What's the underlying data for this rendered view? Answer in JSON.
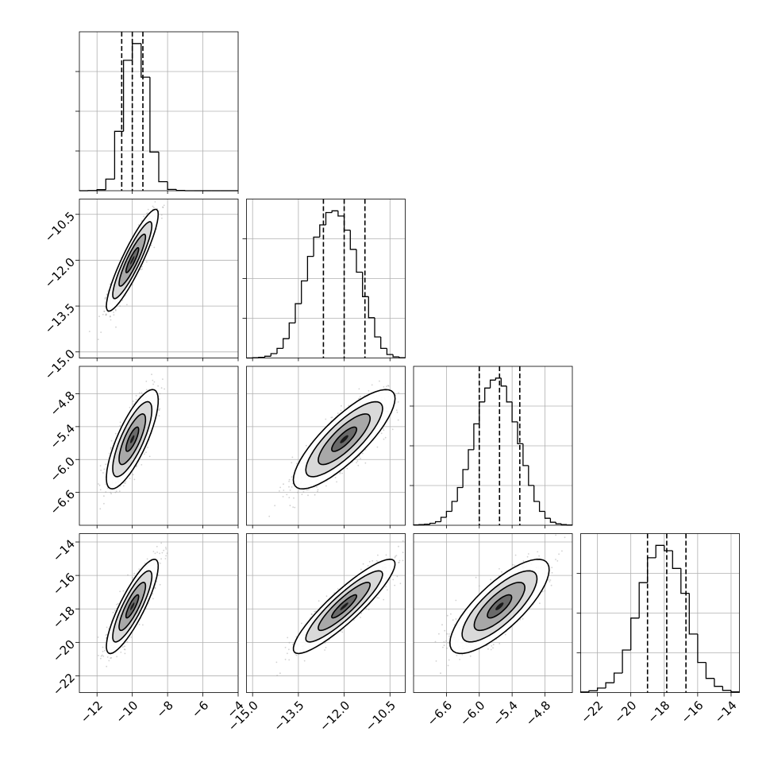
{
  "chart_data": {
    "type": "corner",
    "grid": true,
    "quantile_lines": [
      0.16,
      0.5,
      0.84
    ],
    "colors": {
      "axes": "#000000",
      "grid": "#b0b0b0",
      "points": "#9a9a9a",
      "contour": "#000000",
      "hist": "#000000"
    },
    "parameters": [
      {
        "id": "p0",
        "range": [
          -13,
          -4
        ],
        "mean": -10.0,
        "sd": 0.6,
        "ticks": [
          -12,
          -10,
          -8,
          -6,
          -4
        ],
        "tick_labels": [
          "−12",
          "−10",
          "−8",
          "−6",
          "−4"
        ],
        "quantiles": [
          -10.6,
          -10.0,
          -9.4
        ]
      },
      {
        "id": "p1",
        "range": [
          -15.2,
          -10.0
        ],
        "mean": -12.0,
        "sd": 0.68,
        "ticks": [
          -15.0,
          -13.5,
          -12.0,
          -10.5
        ],
        "tick_labels": [
          "−15.0",
          "−13.5",
          "−12.0",
          "−10.5"
        ],
        "quantiles": [
          -12.68,
          -12.0,
          -11.32
        ]
      },
      {
        "id": "p2",
        "range": [
          -7.2,
          -4.3
        ],
        "mean": -5.63,
        "sd": 0.37,
        "ticks": [
          -6.6,
          -6.0,
          -5.4,
          -4.8
        ],
        "tick_labels": [
          "−6.6",
          "−6.0",
          "−5.4",
          "−4.8"
        ],
        "quantiles": [
          -6.0,
          -5.63,
          -5.26
        ]
      },
      {
        "id": "p3",
        "range": [
          -23.0,
          -13.5
        ],
        "mean": -17.85,
        "sd": 1.15,
        "ticks": [
          -22,
          -20,
          -18,
          -16,
          -14
        ],
        "tick_labels": [
          "−22",
          "−20",
          "−18",
          "−16",
          "−14"
        ],
        "quantiles": [
          -19.0,
          -17.85,
          -16.7
        ]
      }
    ],
    "correlations": {
      "1_0": 0.9,
      "2_0": 0.78,
      "2_1": 0.82,
      "3_0": 0.85,
      "3_1": 0.9,
      "3_2": 0.78
    },
    "histograms": [
      {
        "param": 0,
        "bin_edges": [
          -13.0,
          -12.5,
          -12.0,
          -11.5,
          -11.0,
          -10.5,
          -10.0,
          -9.5,
          -9.0,
          -8.5,
          -8.0,
          -7.5,
          -7.0,
          -6.5,
          -6.0,
          -5.5,
          -5.0,
          -4.5,
          -4.0
        ],
        "counts": [
          0,
          1,
          8,
          90,
          460,
          1010,
          1140,
          880,
          300,
          70,
          10,
          2,
          0,
          0,
          0,
          0,
          0,
          0
        ]
      },
      {
        "param": 1,
        "bin_edges": [
          -15.2,
          -15.0,
          -14.8,
          -14.6,
          -14.4,
          -14.2,
          -14.0,
          -13.8,
          -13.6,
          -13.4,
          -13.2,
          -13.0,
          -12.8,
          -12.6,
          -12.4,
          -12.2,
          -12.0,
          -11.8,
          -11.6,
          -11.4,
          -11.2,
          -11.0,
          -10.8,
          -10.6,
          -10.4,
          -10.2,
          -10.0
        ],
        "counts": [
          0,
          2,
          4,
          10,
          25,
          55,
          110,
          200,
          310,
          440,
          580,
          690,
          760,
          830,
          840,
          810,
          730,
          620,
          490,
          350,
          230,
          120,
          55,
          20,
          7,
          2
        ]
      },
      {
        "param": 2,
        "bin_edges": [
          -7.2,
          -7.1,
          -7.0,
          -6.9,
          -6.8,
          -6.7,
          -6.6,
          -6.5,
          -6.4,
          -6.3,
          -6.2,
          -6.1,
          -6.0,
          -5.9,
          -5.8,
          -5.7,
          -5.6,
          -5.5,
          -5.4,
          -5.3,
          -5.2,
          -5.1,
          -5.0,
          -4.9,
          -4.8,
          -4.7,
          -4.6,
          -4.5,
          -4.4,
          -4.3
        ],
        "counts": [
          2,
          3,
          5,
          10,
          18,
          40,
          70,
          120,
          190,
          280,
          380,
          510,
          620,
          690,
          730,
          740,
          700,
          620,
          520,
          410,
          300,
          200,
          120,
          70,
          35,
          15,
          7,
          3,
          1
        ]
      },
      {
        "param": 3,
        "bin_edges": [
          -23.0,
          -22.5,
          -22.0,
          -21.5,
          -21.0,
          -20.5,
          -20.0,
          -19.5,
          -19.0,
          -18.5,
          -18.0,
          -17.5,
          -17.0,
          -16.5,
          -16.0,
          -15.5,
          -15.0,
          -14.5,
          -14.0,
          -13.5
        ],
        "counts": [
          3,
          10,
          25,
          55,
          110,
          240,
          420,
          620,
          760,
          830,
          800,
          700,
          560,
          330,
          170,
          80,
          35,
          12,
          4
        ]
      }
    ]
  }
}
